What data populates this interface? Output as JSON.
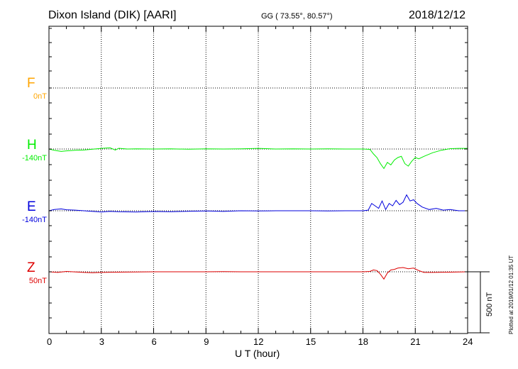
{
  "header": {
    "station": "Dixon Island (DIK)  [AARI]",
    "coords": "GG ( 73.55°,  80.57°)",
    "date": "2018/12/12"
  },
  "footer": {
    "plotted": "Plotted at 2019/01/12 01:35 UT",
    "scale_label": "500 nT"
  },
  "chart_data": {
    "type": "line",
    "title": "Dixon Island (DIK)  [AARI]",
    "xlabel": "U T (hour)",
    "ylabel": "",
    "xlim": [
      0,
      24
    ],
    "xticks": [
      0,
      3,
      6,
      9,
      12,
      15,
      18,
      21,
      24
    ],
    "xtick_labels": [
      "0",
      "3",
      "6",
      "9",
      "12",
      "15",
      "18",
      "21",
      "24"
    ],
    "grid": true,
    "scale_bar_nT": 500,
    "series": [
      {
        "name": "F",
        "offset_label": "0nT",
        "color": "#ffa500",
        "x": [],
        "y": []
      },
      {
        "name": "H",
        "offset_label": "-140nT",
        "color": "#00ee00",
        "x": [
          0,
          0.3,
          0.7,
          1.0,
          1.5,
          2.0,
          2.5,
          3.0,
          3.5,
          3.8,
          4.0,
          4.5,
          5,
          6,
          7,
          8,
          9,
          10,
          11,
          12,
          13,
          14,
          15,
          16,
          17,
          18,
          18.4,
          18.6,
          18.8,
          19.0,
          19.2,
          19.4,
          19.6,
          19.8,
          20.0,
          20.2,
          20.4,
          20.6,
          20.8,
          21.0,
          21.2,
          21.5,
          22.0,
          22.5,
          23.0,
          23.5,
          24.0
        ],
        "y": [
          0,
          -10,
          -20,
          -15,
          -10,
          -8,
          -2,
          5,
          10,
          -8,
          6,
          0,
          2,
          0,
          1,
          -2,
          2,
          0,
          2,
          5,
          0,
          2,
          0,
          1,
          0,
          0,
          -3,
          -40,
          -70,
          -120,
          -160,
          -110,
          -130,
          -90,
          -70,
          -60,
          -120,
          -140,
          -100,
          -70,
          -80,
          -60,
          -30,
          -10,
          3,
          5,
          5
        ]
      },
      {
        "name": "E",
        "offset_label": "-140nT",
        "color": "#0000dd",
        "x": [
          0,
          0.3,
          0.7,
          1.0,
          1.5,
          2.0,
          2.5,
          3.0,
          3.5,
          4.0,
          5,
          6,
          7,
          8,
          9,
          10,
          11,
          12,
          13,
          14,
          15,
          16,
          17,
          18,
          18.3,
          18.5,
          18.7,
          18.9,
          19.1,
          19.3,
          19.5,
          19.7,
          19.9,
          20.1,
          20.3,
          20.5,
          20.7,
          20.9,
          21.1,
          21.4,
          21.8,
          22.2,
          22.6,
          23.0,
          23.5,
          24.0
        ],
        "y": [
          0,
          10,
          15,
          8,
          5,
          0,
          -5,
          -10,
          -5,
          -8,
          -10,
          -6,
          -8,
          -4,
          -2,
          -5,
          0,
          -2,
          0,
          0,
          0,
          -2,
          0,
          0,
          5,
          60,
          40,
          20,
          80,
          10,
          60,
          40,
          85,
          50,
          70,
          130,
          80,
          90,
          60,
          30,
          10,
          20,
          5,
          10,
          0,
          0
        ]
      },
      {
        "name": "Z",
        "offset_label": "50nT",
        "color": "#dd0000",
        "x": [
          0,
          0.5,
          1.0,
          2.0,
          2.5,
          3.0,
          4.0,
          5,
          6,
          7,
          8,
          9,
          10,
          11,
          12,
          13,
          14,
          15,
          16,
          17,
          18,
          18.4,
          18.6,
          18.8,
          19.0,
          19.2,
          19.4,
          19.6,
          19.8,
          20.0,
          20.3,
          20.6,
          20.9,
          21.2,
          21.5,
          22.0,
          23.0,
          24.0
        ],
        "y": [
          0,
          -5,
          3,
          -5,
          -8,
          -5,
          -3,
          -2,
          0,
          0,
          0,
          0,
          1,
          0,
          0,
          0,
          0,
          0,
          0,
          0,
          0,
          3,
          15,
          10,
          -20,
          -60,
          -10,
          15,
          20,
          30,
          35,
          25,
          30,
          10,
          -5,
          -5,
          -3,
          0
        ]
      }
    ]
  }
}
